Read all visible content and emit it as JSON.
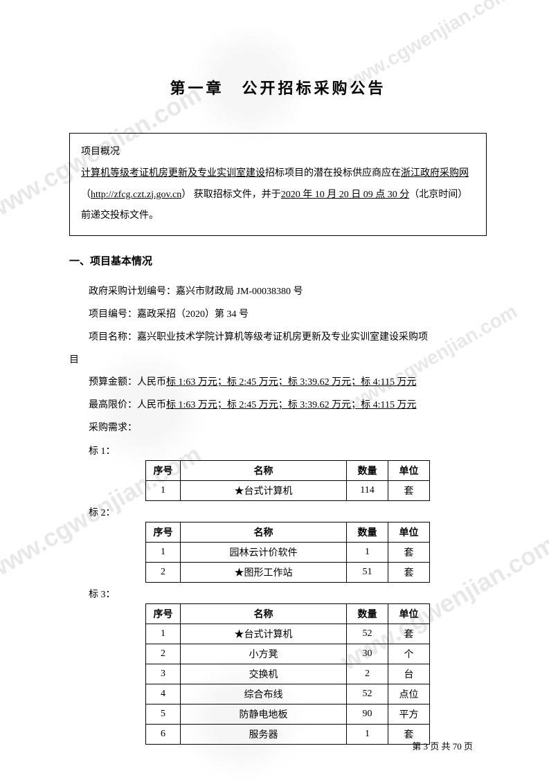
{
  "watermarks": {
    "text": "www.cgwenjian.com"
  },
  "chapter": {
    "title": "第一章　公开招标采购公告"
  },
  "overview": {
    "heading": "项目概况",
    "project_name_u": "计算机等级考证机房更新及专业实训室建设",
    "text_1": "招标项目的潜在投标供应商应在",
    "site_name_u": "浙江政府采购网",
    "site_url": "http://zfcg.czt.zj.gov.cn",
    "text_2": "获取招标文件，并于",
    "deadline_u": "2020 年 10 月 20 日 09 点 30 分",
    "text_3": "（北京时间）前递交投标文件。"
  },
  "section1": {
    "title": "一、项目基本情况",
    "plan_no_label": "政府采购计划编号：",
    "plan_no_value": "嘉兴市财政局 JM-00038380 号",
    "proj_no_label": "项目编号：",
    "proj_no_value": "嘉政采招（2020）第 34 号",
    "proj_name_label": "项目名称：",
    "proj_name_value": "嘉兴职业技术学院计算机等级考证机房更新及专业实训室建设采购项",
    "proj_name_tail": "目",
    "budget_label": "预算金额：人民币",
    "budget_u": "标 1:63 万元；标 2:45 万元；标 3:39.62 万元；标 4:115 万元",
    "ceiling_label": "最高限价：人民币",
    "ceiling_u": "标 1:63 万元；标 2:45 万元；标 3:39.62 万元；标 4:115 万元",
    "demand_label": "采购需求："
  },
  "tables": {
    "headers": {
      "seq": "序号",
      "name": "名称",
      "qty": "数量",
      "unit": "单位"
    },
    "t1": {
      "label": "标 1：",
      "rows": [
        {
          "seq": "1",
          "name": "★台式计算机",
          "qty": "114",
          "unit": "套"
        }
      ]
    },
    "t2": {
      "label": "标 2：",
      "rows": [
        {
          "seq": "1",
          "name": "园林云计价软件",
          "qty": "1",
          "unit": "套"
        },
        {
          "seq": "2",
          "name": "★图形工作站",
          "qty": "51",
          "unit": "套"
        }
      ]
    },
    "t3": {
      "label": "标 3：",
      "rows": [
        {
          "seq": "1",
          "name": "★台式计算机",
          "qty": "52",
          "unit": "套"
        },
        {
          "seq": "2",
          "name": "小方凳",
          "qty": "30",
          "unit": "个"
        },
        {
          "seq": "3",
          "name": "交换机",
          "qty": "2",
          "unit": "台"
        },
        {
          "seq": "4",
          "name": "综合布线",
          "qty": "52",
          "unit": "点位"
        },
        {
          "seq": "5",
          "name": "防静电地板",
          "qty": "90",
          "unit": "平方"
        },
        {
          "seq": "6",
          "name": "服务器",
          "qty": "1",
          "unit": "套"
        }
      ]
    }
  },
  "footer": {
    "page_text": "第 3 页 共 70 页"
  }
}
